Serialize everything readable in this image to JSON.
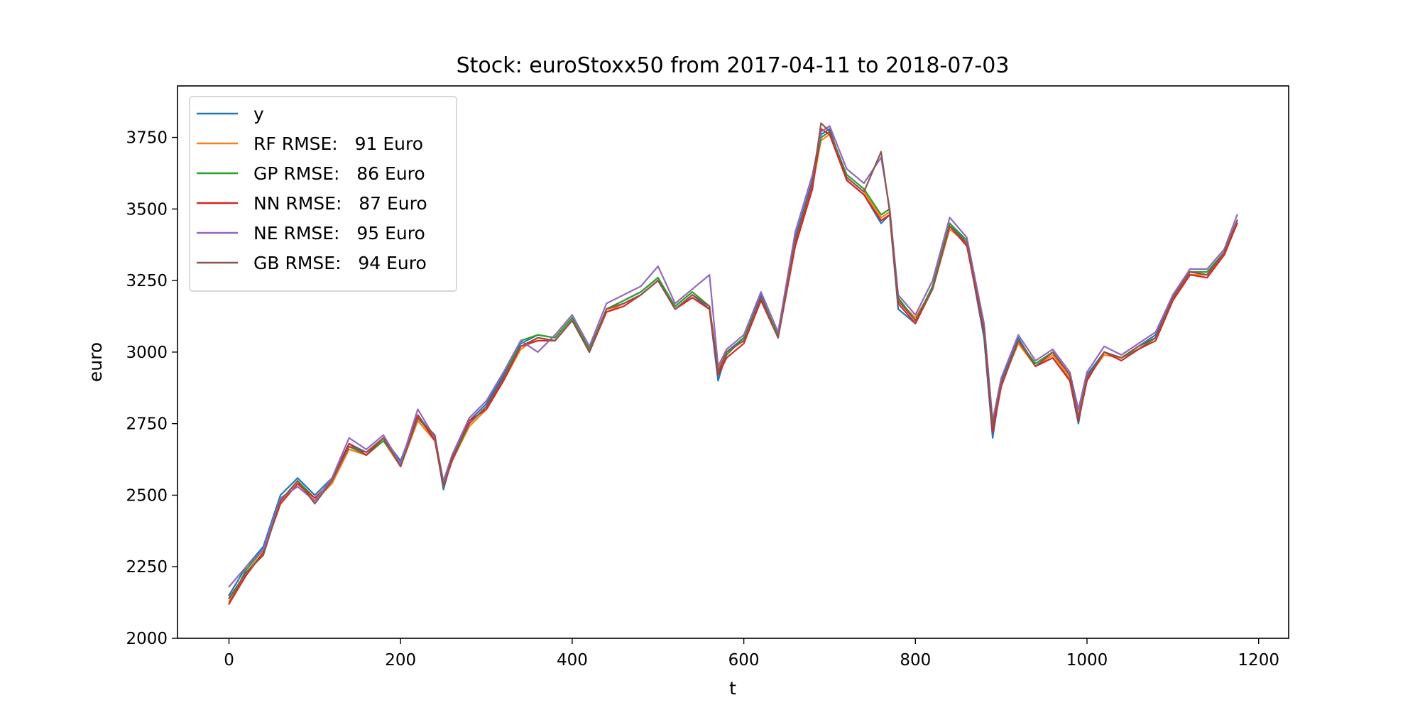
{
  "chart_data": {
    "type": "line",
    "title": "Stock: euroStoxx50 from 2017-04-11 to 2018-07-03",
    "xlabel": "t",
    "ylabel": "euro",
    "xlim": [
      -60,
      1235
    ],
    "ylim": [
      2000,
      3930
    ],
    "x_ticks": [
      0,
      200,
      400,
      600,
      800,
      1000,
      1200
    ],
    "y_ticks": [
      2000,
      2250,
      2500,
      2750,
      3000,
      3250,
      3500,
      3750
    ],
    "grid": false,
    "legend_position": "upper-left",
    "x": [
      0,
      20,
      40,
      60,
      80,
      100,
      120,
      140,
      160,
      180,
      200,
      220,
      240,
      250,
      260,
      280,
      300,
      320,
      340,
      360,
      380,
      400,
      420,
      440,
      460,
      480,
      500,
      520,
      540,
      560,
      570,
      580,
      600,
      620,
      640,
      660,
      680,
      690,
      700,
      720,
      740,
      760,
      770,
      780,
      800,
      820,
      840,
      860,
      880,
      890,
      900,
      920,
      940,
      960,
      980,
      990,
      1000,
      1020,
      1040,
      1060,
      1080,
      1100,
      1120,
      1140,
      1160,
      1175
    ],
    "series": [
      {
        "name": "y",
        "color": "#1f77b4",
        "values": [
          2150,
          2250,
          2320,
          2500,
          2560,
          2500,
          2560,
          2680,
          2650,
          2700,
          2620,
          2780,
          2700,
          2520,
          2630,
          2760,
          2820,
          2920,
          3030,
          3060,
          3050,
          3120,
          3000,
          3150,
          3180,
          3210,
          3260,
          3150,
          3200,
          3150,
          2900,
          3000,
          3050,
          3200,
          3050,
          3400,
          3600,
          3760,
          3780,
          3600,
          3550,
          3450,
          3480,
          3150,
          3100,
          3230,
          3450,
          3380,
          3050,
          2700,
          2900,
          3050,
          2950,
          3000,
          2900,
          2750,
          2920,
          3000,
          2980,
          3020,
          3060,
          3200,
          3280,
          3270,
          3350,
          3460
        ]
      },
      {
        "name": "RF RMSE:   91 Euro",
        "color": "#ff7f0e",
        "values": [
          2130,
          2230,
          2300,
          2470,
          2540,
          2480,
          2540,
          2660,
          2640,
          2690,
          2600,
          2760,
          2690,
          2540,
          2620,
          2740,
          2800,
          2900,
          3010,
          3050,
          3040,
          3110,
          3010,
          3140,
          3170,
          3200,
          3250,
          3160,
          3210,
          3160,
          2940,
          3000,
          3040,
          3180,
          3060,
          3380,
          3580,
          3740,
          3760,
          3610,
          3560,
          3470,
          3490,
          3180,
          3120,
          3220,
          3430,
          3380,
          3080,
          2740,
          2890,
          3030,
          2950,
          2990,
          2910,
          2780,
          2910,
          2990,
          2980,
          3010,
          3050,
          3180,
          3270,
          3270,
          3340,
          3450
        ]
      },
      {
        "name": "GP RMSE:   86 Euro",
        "color": "#2ca02c",
        "values": [
          2120,
          2240,
          2310,
          2480,
          2550,
          2490,
          2550,
          2670,
          2640,
          2690,
          2610,
          2770,
          2700,
          2540,
          2620,
          2750,
          2810,
          2910,
          3040,
          3060,
          3050,
          3120,
          3010,
          3150,
          3180,
          3210,
          3260,
          3160,
          3210,
          3160,
          2930,
          2990,
          3050,
          3190,
          3060,
          3390,
          3590,
          3750,
          3770,
          3620,
          3570,
          3480,
          3500,
          3190,
          3110,
          3230,
          3450,
          3390,
          3090,
          2730,
          2880,
          3040,
          2960,
          3000,
          2920,
          2770,
          2910,
          3000,
          2980,
          3010,
          3050,
          3190,
          3280,
          3280,
          3350,
          3460
        ]
      },
      {
        "name": "NN RMSE:   87 Euro",
        "color": "#d62728",
        "values": [
          2120,
          2220,
          2300,
          2470,
          2540,
          2490,
          2550,
          2680,
          2640,
          2700,
          2600,
          2780,
          2690,
          2530,
          2620,
          2760,
          2800,
          2900,
          3020,
          3040,
          3040,
          3110,
          3000,
          3140,
          3160,
          3200,
          3250,
          3150,
          3190,
          3150,
          2920,
          2980,
          3030,
          3180,
          3050,
          3370,
          3570,
          3780,
          3760,
          3600,
          3550,
          3460,
          3480,
          3170,
          3100,
          3220,
          3440,
          3370,
          3070,
          2720,
          2880,
          3040,
          2950,
          2980,
          2900,
          2760,
          2900,
          3000,
          2970,
          3010,
          3040,
          3180,
          3270,
          3260,
          3340,
          3450
        ]
      },
      {
        "name": "NE RMSE:   95 Euro",
        "color": "#9467bd",
        "values": [
          2180,
          2250,
          2310,
          2490,
          2530,
          2480,
          2560,
          2700,
          2660,
          2710,
          2610,
          2800,
          2700,
          2550,
          2640,
          2770,
          2830,
          2930,
          3040,
          3000,
          3060,
          3130,
          3020,
          3170,
          3200,
          3230,
          3300,
          3170,
          3220,
          3270,
          2950,
          3010,
          3060,
          3210,
          3070,
          3420,
          3620,
          3770,
          3790,
          3640,
          3590,
          3680,
          3500,
          3200,
          3130,
          3250,
          3470,
          3400,
          3100,
          2760,
          2910,
          3060,
          2970,
          3010,
          2930,
          2800,
          2930,
          3020,
          2990,
          3030,
          3070,
          3200,
          3290,
          3290,
          3360,
          3480
        ]
      },
      {
        "name": "GB RMSE:   94 Euro",
        "color": "#8c564b",
        "values": [
          2140,
          2230,
          2290,
          2480,
          2550,
          2470,
          2550,
          2670,
          2650,
          2700,
          2600,
          2770,
          2710,
          2530,
          2630,
          2750,
          2810,
          2910,
          3020,
          3050,
          3040,
          3110,
          3000,
          3150,
          3170,
          3200,
          3250,
          3150,
          3200,
          3160,
          2930,
          3000,
          3040,
          3190,
          3050,
          3390,
          3590,
          3800,
          3770,
          3610,
          3560,
          3700,
          3490,
          3180,
          3110,
          3220,
          3440,
          3380,
          3080,
          2740,
          2890,
          3040,
          2950,
          3000,
          2920,
          2770,
          2910,
          3000,
          2980,
          3020,
          3050,
          3190,
          3280,
          3270,
          3350,
          3460
        ]
      }
    ]
  }
}
